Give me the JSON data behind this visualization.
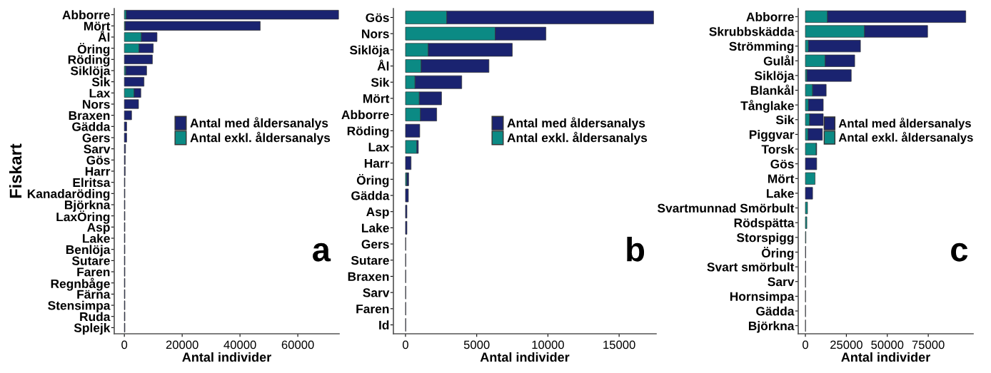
{
  "chart_data": [
    {
      "type": "bar",
      "orientation": "horizontal",
      "stacked": true,
      "xlabel": "Antal individer",
      "ylabel": "Fiskart",
      "annotations": [
        "a"
      ],
      "legend": "center right",
      "categories": [
        "Abborre",
        "Mört",
        "Ål",
        "Öring",
        "Röding",
        "Siklöja",
        "Sik",
        "Lax",
        "Nors",
        "Braxen",
        "Gädda",
        "Gers",
        "Sarv",
        "Gös",
        "Harr",
        "Elritsa",
        "Kanadaröding",
        "Björkna",
        "LaxÖring",
        "Asp",
        "Lake",
        "Benlöja",
        "Sutare",
        "Faren",
        "Regnbåge",
        "Färna",
        "Stensimpa",
        "Ruda",
        "Splejk"
      ],
      "xlim": [
        -3500,
        74300
      ],
      "xticks": [
        0,
        20000,
        40000,
        60000
      ],
      "series": [
        {
          "name": "Antal exkl. åldersanalys",
          "color": "#0b8a84",
          "values": [
            700,
            300,
            5900,
            5100,
            null,
            500,
            null,
            3400,
            null,
            null,
            null,
            null,
            null,
            null,
            null,
            null,
            null,
            null,
            null,
            null,
            null,
            null,
            null,
            null,
            null,
            null,
            null,
            null,
            null
          ]
        },
        {
          "name": "Antal med åldersanalys",
          "color": "#1a2370",
          "values": [
            73400,
            46700,
            5400,
            4900,
            9700,
            7200,
            6800,
            2300,
            4900,
            2500,
            800,
            800,
            400,
            300,
            300,
            200,
            200,
            200,
            200,
            200,
            200,
            200,
            200,
            200,
            200,
            200,
            200,
            200,
            200
          ]
        }
      ]
    },
    {
      "type": "bar",
      "orientation": "horizontal",
      "stacked": true,
      "xlabel": "Antal individer",
      "annotations": [
        "b"
      ],
      "legend": "center right",
      "categories": [
        "Gös",
        "Nors",
        "Siklöja",
        "Ål",
        "Sik",
        "Mört",
        "Abborre",
        "Röding",
        "Lax",
        "Harr",
        "Öring",
        "Gädda",
        "Asp",
        "Lake",
        "Gers",
        "Sutare",
        "Braxen",
        "Sarv",
        "Faren",
        "Id"
      ],
      "xlim": [
        -850,
        17600
      ],
      "xticks": [
        0,
        5000,
        10000,
        15000
      ],
      "series": [
        {
          "name": "Antal exkl. åldersanalys",
          "color": "#0b8a84",
          "values": [
            2900,
            6300,
            1600,
            1100,
            670,
            970,
            1050,
            null,
            800,
            null,
            100,
            null,
            null,
            null,
            null,
            null,
            null,
            null,
            null,
            null
          ]
        },
        {
          "name": "Antal med åldersanalys",
          "color": "#1a2370",
          "values": [
            14520,
            3560,
            5900,
            4760,
            3280,
            1560,
            1140,
            1000,
            100,
            390,
            120,
            200,
            100,
            100,
            20,
            20,
            20,
            20,
            20,
            20
          ]
        }
      ]
    },
    {
      "type": "bar",
      "orientation": "horizontal",
      "stacked": true,
      "xlabel": "Antal individer",
      "annotations": [
        "c"
      ],
      "legend": "center right",
      "categories": [
        "Abborre",
        "Skrubbskädda",
        "Strömming",
        "Gulål",
        "Siklöja",
        "Blankål",
        "Tånglake",
        "Sik",
        "Piggvar",
        "Torsk",
        "Gös",
        "Mört",
        "Lake",
        "Svartmunnad Smörbult",
        "Rödspätta",
        "Storspigg",
        "Öring",
        "Svart smörbult",
        "Sarv",
        "Hornsimpa",
        "Gädda",
        "Björkna"
      ],
      "xlim": [
        -4370,
        102400
      ],
      "xticks": [
        0,
        25000,
        50000,
        75000
      ],
      "series": [
        {
          "name": "Antal exkl. åldersanalys",
          "color": "#0b8a84",
          "values": [
            13500,
            36100,
            1900,
            12100,
            1000,
            4400,
            1900,
            2600,
            1700,
            6600,
            null,
            5900,
            null,
            1300,
            900,
            300,
            null,
            null,
            null,
            null,
            null,
            null
          ]
        },
        {
          "name": "Antal med åldersanalys",
          "color": "#1a2370",
          "values": [
            84400,
            38500,
            31700,
            18000,
            27000,
            8300,
            9000,
            8300,
            8700,
            300,
            6900,
            null,
            4400,
            null,
            null,
            null,
            200,
            200,
            100,
            100,
            100,
            100
          ]
        }
      ]
    }
  ]
}
